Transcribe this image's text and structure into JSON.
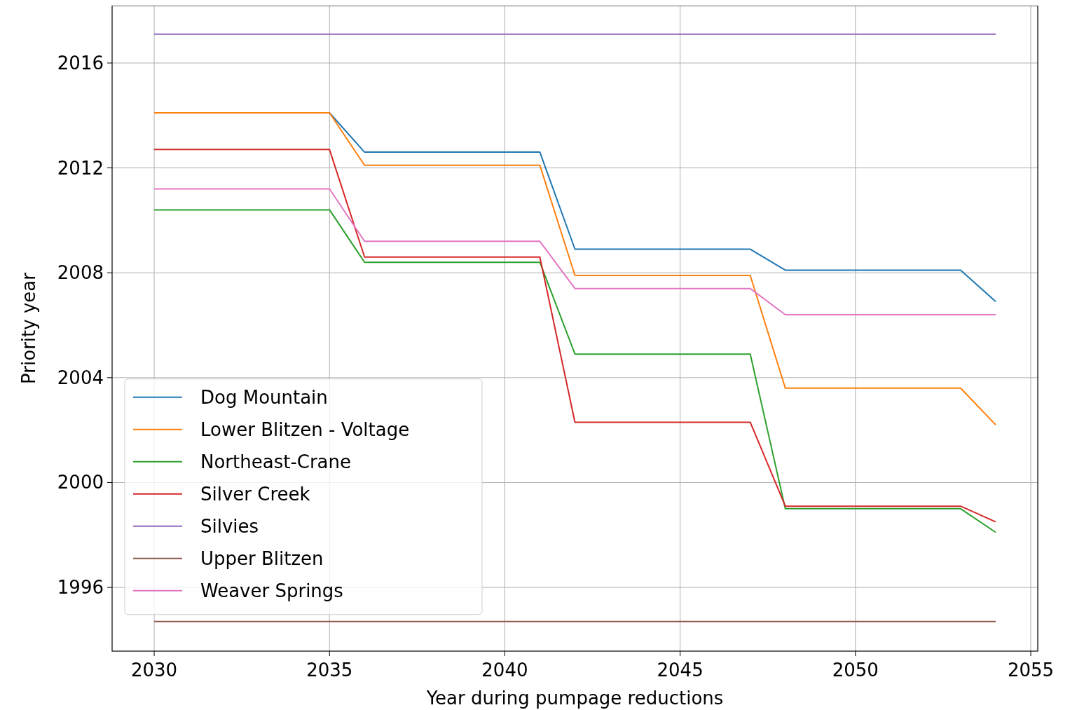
{
  "chart_data": {
    "type": "line",
    "xlabel": "Year during pumpage reductions",
    "ylabel": "Priority year",
    "x": [
      2030,
      2035,
      2036,
      2041,
      2042,
      2047,
      2048,
      2053,
      2054
    ],
    "series": [
      {
        "name": "Dog Mountain",
        "color": "#1f77b4",
        "values": [
          2014.1,
          2014.1,
          2012.6,
          2012.6,
          2008.9,
          2008.9,
          2008.1,
          2008.1,
          2006.9
        ]
      },
      {
        "name": "Lower Blitzen - Voltage",
        "color": "#ff7f0e",
        "values": [
          2014.1,
          2014.1,
          2012.1,
          2012.1,
          2007.9,
          2007.9,
          2003.6,
          2003.6,
          2002.2
        ]
      },
      {
        "name": "Northeast-Crane",
        "color": "#2ca02c",
        "values": [
          2010.4,
          2010.4,
          2008.4,
          2008.4,
          2004.9,
          2004.9,
          1999.0,
          1999.0,
          1998.1
        ]
      },
      {
        "name": "Silver Creek",
        "color": "#d62728",
        "values": [
          2012.7,
          2012.7,
          2008.6,
          2008.6,
          2002.3,
          2002.3,
          1999.1,
          1999.1,
          1998.5
        ]
      },
      {
        "name": "Silvies",
        "color": "#9467bd",
        "values": [
          2017.1,
          2017.1,
          2017.1,
          2017.1,
          2017.1,
          2017.1,
          2017.1,
          2017.1,
          2017.1
        ]
      },
      {
        "name": "Upper Blitzen",
        "color": "#8c564b",
        "values": [
          1994.7,
          1994.7,
          1994.7,
          1994.7,
          1994.7,
          1994.7,
          1994.7,
          1994.7,
          1994.7
        ]
      },
      {
        "name": "Weaver Springs",
        "color": "#e377c2",
        "values": [
          2011.2,
          2011.2,
          2009.2,
          2009.2,
          2007.4,
          2007.4,
          2006.4,
          2006.4,
          2006.4
        ]
      }
    ],
    "xlim": [
      2028.8,
      2055.2
    ],
    "xticks": [
      2030,
      2035,
      2040,
      2045,
      2050,
      2055
    ],
    "ylim": [
      1993.57,
      2018.19
    ],
    "yticks": [
      1996,
      2000,
      2004,
      2008,
      2012,
      2016
    ],
    "grid": true,
    "legend": "bottom left",
    "marker": "none",
    "line_style": "solid"
  }
}
